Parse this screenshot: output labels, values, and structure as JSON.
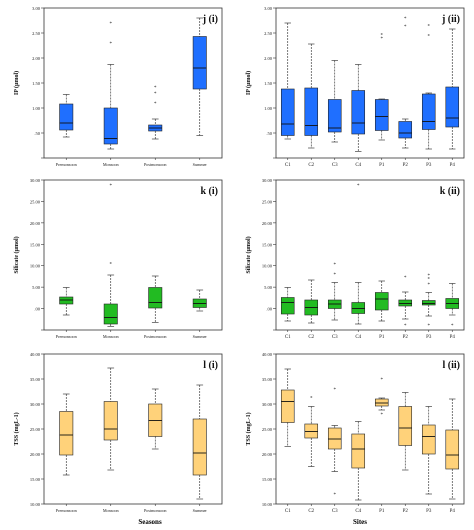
{
  "xlabels": {
    "seasons": "Seasons",
    "sites": "Sites"
  },
  "chart_data": [
    {
      "type": "boxplot",
      "panel_label": "j (i)",
      "ylabel": "IP (µmol)",
      "ylim": [
        0.0,
        3.0
      ],
      "yticks": [
        "",
        ".50",
        "1.00",
        "1.50",
        "2.00",
        "2.50",
        "3.00"
      ],
      "color": "#1f6fff",
      "categories": [
        "Premonsoon",
        "Monsoon",
        "Postmonsoon",
        "Summer"
      ],
      "boxes": [
        {
          "min": 0.42,
          "q1": 0.56,
          "median": 0.7,
          "q3": 1.08,
          "max": 1.27,
          "outliers": []
        },
        {
          "min": 0.18,
          "q1": 0.28,
          "median": 0.39,
          "q3": 1.0,
          "max": 1.87,
          "outliers": [
            2.3,
            2.7
          ]
        },
        {
          "min": 0.38,
          "q1": 0.54,
          "median": 0.6,
          "q3": 0.66,
          "max": 0.78,
          "outliers": [
            1.1,
            1.3,
            1.42
          ]
        },
        {
          "min": 0.45,
          "q1": 1.38,
          "median": 1.8,
          "q3": 2.43,
          "max": 2.8,
          "outliers": []
        }
      ]
    },
    {
      "type": "boxplot",
      "panel_label": "j (ii)",
      "ylabel": "IP (µmol)",
      "ylim": [
        0.0,
        3.0
      ],
      "yticks": [
        "",
        ".50",
        "1.00",
        "1.50",
        "2.00",
        "2.50",
        "3.00"
      ],
      "color": "#1f6fff",
      "categories": [
        "C1",
        "C2",
        "C3",
        "C4",
        "P1",
        "P2",
        "P3",
        "P4"
      ],
      "boxes": [
        {
          "min": 0.38,
          "q1": 0.45,
          "median": 0.68,
          "q3": 1.38,
          "max": 2.7,
          "outliers": []
        },
        {
          "min": 0.2,
          "q1": 0.45,
          "median": 0.65,
          "q3": 1.4,
          "max": 2.28,
          "outliers": []
        },
        {
          "min": 0.32,
          "q1": 0.52,
          "median": 0.6,
          "q3": 1.17,
          "max": 1.95,
          "outliers": []
        },
        {
          "min": 0.13,
          "q1": 0.48,
          "median": 0.7,
          "q3": 1.35,
          "max": 1.87,
          "outliers": []
        },
        {
          "min": 0.36,
          "q1": 0.55,
          "median": 0.83,
          "q3": 1.17,
          "max": 1.18,
          "outliers": [
            2.4,
            2.47
          ]
        },
        {
          "min": 0.2,
          "q1": 0.4,
          "median": 0.5,
          "q3": 0.73,
          "max": 0.78,
          "outliers": [
            2.64,
            2.8
          ]
        },
        {
          "min": 0.18,
          "q1": 0.57,
          "median": 0.73,
          "q3": 1.28,
          "max": 1.3,
          "outliers": [
            2.45,
            2.65
          ]
        },
        {
          "min": 0.18,
          "q1": 0.62,
          "median": 0.8,
          "q3": 1.42,
          "max": 2.58,
          "outliers": []
        }
      ]
    },
    {
      "type": "boxplot",
      "panel_label": "k (i)",
      "ylabel": "Silicate (µmol)",
      "ylim": [
        0.0,
        30.0
      ],
      "yticks": [
        "",
        ".00",
        "5.00",
        "10.00",
        "15.00",
        "20.00",
        "25.00",
        "30.00"
      ],
      "color": "#22bb22",
      "categories": [
        "Premonsoon",
        "Monsoon",
        "Postmonsoon",
        "Summer"
      ],
      "boxes": [
        {
          "min": 3.0,
          "q1": 5.2,
          "median": 6.0,
          "q3": 6.6,
          "max": 8.5,
          "outliers": []
        },
        {
          "min": 0.7,
          "q1": 1.2,
          "median": 2.5,
          "q3": 5.2,
          "max": 11.0,
          "outliers": [
            13.3,
            29.0
          ]
        },
        {
          "min": 1.5,
          "q1": 4.4,
          "median": 5.5,
          "q3": 8.5,
          "max": 10.8,
          "outliers": []
        },
        {
          "min": 3.8,
          "q1": 4.5,
          "median": 5.3,
          "q3": 6.2,
          "max": 8.0,
          "outliers": []
        }
      ]
    },
    {
      "type": "boxplot",
      "panel_label": "k (ii)",
      "ylabel": "Silicate (µmol)",
      "ylim": [
        0.0,
        30.0
      ],
      "yticks": [
        "",
        ".00",
        "5.00",
        "10.00",
        "15.00",
        "20.00",
        "25.00",
        "30.00"
      ],
      "color": "#22bb22",
      "categories": [
        "C1",
        "C2",
        "C3",
        "C4",
        "P1",
        "P2",
        "P3",
        "P4"
      ],
      "boxes": [
        {
          "min": 1.8,
          "q1": 3.2,
          "median": 5.5,
          "q3": 6.5,
          "max": 8.5,
          "outliers": []
        },
        {
          "min": 1.4,
          "q1": 3.0,
          "median": 4.5,
          "q3": 6.0,
          "max": 10.0,
          "outliers": []
        },
        {
          "min": 2.0,
          "q1": 4.3,
          "median": 5.2,
          "q3": 6.0,
          "max": 9.5,
          "outliers": [
            11.2,
            13.2
          ]
        },
        {
          "min": 1.2,
          "q1": 3.3,
          "median": 4.3,
          "q3": 5.5,
          "max": 9.5,
          "outliers": [
            29.0
          ]
        },
        {
          "min": 1.8,
          "q1": 4.0,
          "median": 6.2,
          "q3": 7.5,
          "max": 9.8,
          "outliers": []
        },
        {
          "min": 2.2,
          "q1": 4.8,
          "median": 5.3,
          "q3": 6.0,
          "max": 7.6,
          "outliers": [
            1.0,
            10.6
          ]
        },
        {
          "min": 2.8,
          "q1": 5.0,
          "median": 5.3,
          "q3": 5.9,
          "max": 7.5,
          "outliers": [
            1.0,
            9.2,
            10.3,
            11.0
          ]
        },
        {
          "min": 3.0,
          "q1": 4.3,
          "median": 5.3,
          "q3": 6.3,
          "max": 9.3,
          "outliers": [
            1.0
          ]
        }
      ]
    },
    {
      "type": "boxplot",
      "panel_label": "l (i)",
      "ylabel": "TSS (mgL-1)",
      "ylim": [
        10.0,
        40.0
      ],
      "yticks": [
        "10.00",
        "15.00",
        "20.00",
        "25.00",
        "30.00",
        "35.00",
        "40.00"
      ],
      "color": "#ffd27a",
      "categories": [
        "Premonsoon",
        "Monsoon",
        "Postmonsoon",
        "Summer"
      ],
      "boxes": [
        {
          "min": 15.8,
          "q1": 19.8,
          "median": 23.8,
          "q3": 28.5,
          "max": 32.0,
          "outliers": []
        },
        {
          "min": 16.8,
          "q1": 22.8,
          "median": 25.0,
          "q3": 30.5,
          "max": 37.2,
          "outliers": []
        },
        {
          "min": 21.0,
          "q1": 23.5,
          "median": 26.7,
          "q3": 30.0,
          "max": 33.0,
          "outliers": []
        },
        {
          "min": 11.0,
          "q1": 15.8,
          "median": 20.2,
          "q3": 27.0,
          "max": 33.8,
          "outliers": []
        }
      ]
    },
    {
      "type": "boxplot",
      "panel_label": "l (ii)",
      "ylabel": "TSS (mgL-1)",
      "ylim": [
        10.0,
        40.0
      ],
      "yticks": [
        "10.00",
        "15.00",
        "20.00",
        "25.00",
        "30.00",
        "35.00",
        "40.00"
      ],
      "color": "#ffd27a",
      "categories": [
        "C1",
        "C2",
        "C3",
        "C4",
        "P1",
        "P2",
        "P3",
        "P4"
      ],
      "boxes": [
        {
          "min": 21.5,
          "q1": 26.3,
          "median": 30.5,
          "q3": 32.8,
          "max": 37.0,
          "outliers": []
        },
        {
          "min": 17.5,
          "q1": 23.2,
          "median": 24.5,
          "q3": 26.0,
          "max": 29.5,
          "outliers": [
            31.3
          ]
        },
        {
          "min": 16.5,
          "q1": 21.0,
          "median": 23.0,
          "q3": 25.2,
          "max": 25.7,
          "outliers": [
            12.0,
            33.0
          ]
        },
        {
          "min": 10.8,
          "q1": 17.2,
          "median": 21.0,
          "q3": 24.0,
          "max": 26.5,
          "outliers": []
        },
        {
          "min": 28.8,
          "q1": 29.6,
          "median": 30.2,
          "q3": 31.0,
          "max": 31.2,
          "outliers": [
            28.0,
            35.0
          ]
        },
        {
          "min": 16.8,
          "q1": 21.7,
          "median": 25.2,
          "q3": 29.5,
          "max": 32.3,
          "outliers": []
        },
        {
          "min": 12.0,
          "q1": 20.0,
          "median": 23.5,
          "q3": 25.8,
          "max": 29.5,
          "outliers": []
        },
        {
          "min": 11.0,
          "q1": 17.0,
          "median": 19.8,
          "q3": 24.8,
          "max": 31.0,
          "outliers": []
        }
      ]
    }
  ]
}
